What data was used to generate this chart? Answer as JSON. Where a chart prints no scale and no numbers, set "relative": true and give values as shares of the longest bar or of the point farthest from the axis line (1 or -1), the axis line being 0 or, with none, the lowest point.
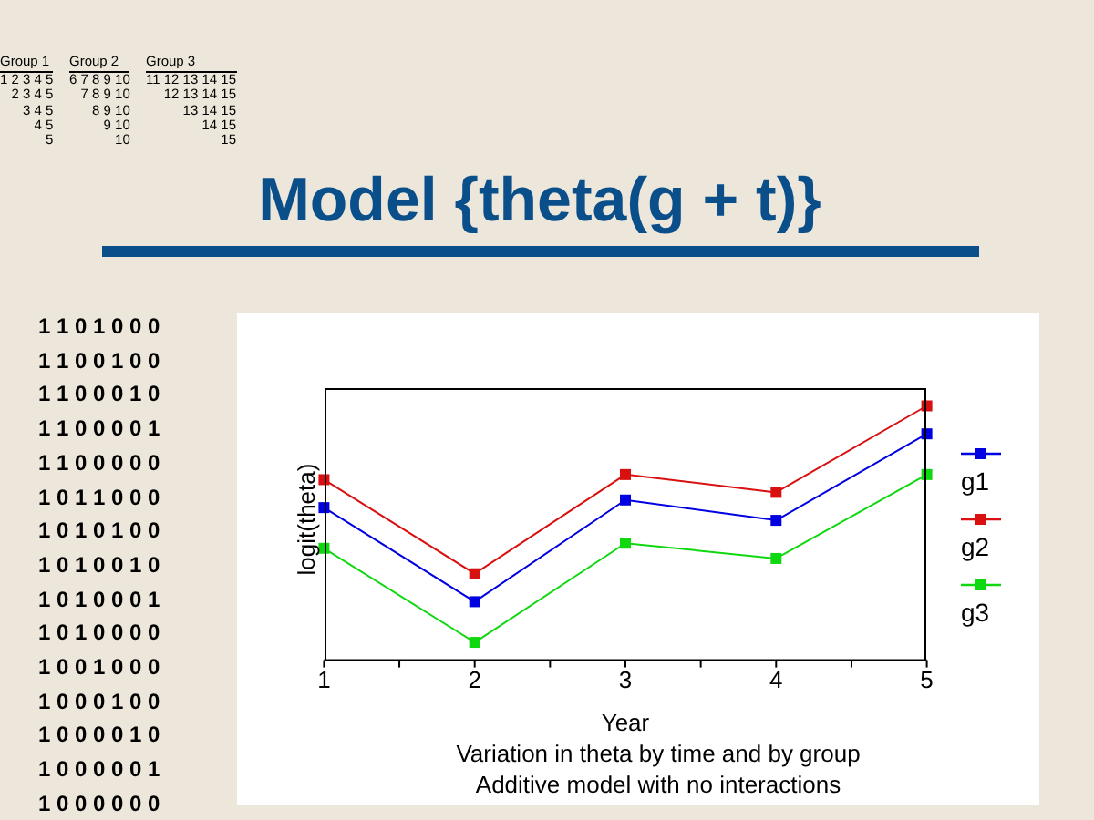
{
  "chart_data": {
    "type": "line",
    "title": "Model {theta(g + t)}",
    "xlabel": "Year",
    "ylabel": "logit(theta)",
    "annotations": [
      "Group 1\n1 2 3 4 5\n2 3 4 5\n3 4 5\n4 5\n5",
      "Group 2\n6 7 8 9 10\n7 8 9 10\n8 9 10\n9 10\n10",
      "Group 3\n11 12 13 14 15\n12 13 14 15\n13 14 15\n14 15\n15",
      "1 1 0 1 0 0 0\n1 1 0 0 1 0 0\n1 1 0 0 0 1 0\n1 1 0 0 0 0 1\n1 1 0 0 0 0 0\n1 0 1 1 0 0 0\n1 0 1 0 1 0 0\n1 0 1 0 0 1 0\n1 0 1 0 0 0 1\n1 0 1 0 0 0 0\n1 0 0 1 0 0 0\n1 0 0 0 1 0 0\n1 0 0 0 0 1 0\n1 0 0 0 0 0 1\n1 0 0 0 0 0 0",
      "Variation in theta by time and by group\nAdditive model with no interactions"
    ],
    "x": [
      1,
      2,
      3,
      4,
      5
    ],
    "xlim": [
      1,
      5
    ],
    "xticks": [
      1,
      {
        "value": 1.5,
        "label": null
      },
      2,
      {
        "value": 2.5,
        "label": null
      },
      3,
      {
        "value": 3.5,
        "label": null
      },
      4,
      {
        "value": 4.5,
        "label": null
      },
      5
    ],
    "relative": true,
    "series": [
      {
        "name": "g1",
        "color": "#0000e0",
        "values": [
          0.6,
          0.23,
          0.63,
          0.55,
          0.89
        ]
      },
      {
        "name": "g2",
        "color": "#d81010",
        "values": [
          0.71,
          0.34,
          0.73,
          0.66,
          1
        ]
      },
      {
        "name": "g3",
        "color": "#10d810",
        "values": [
          0.44,
          0.07,
          0.46,
          0.4,
          0.73
        ]
      }
    ],
    "legend": "right",
    "marker": "square",
    "line_style": "solid"
  }
}
